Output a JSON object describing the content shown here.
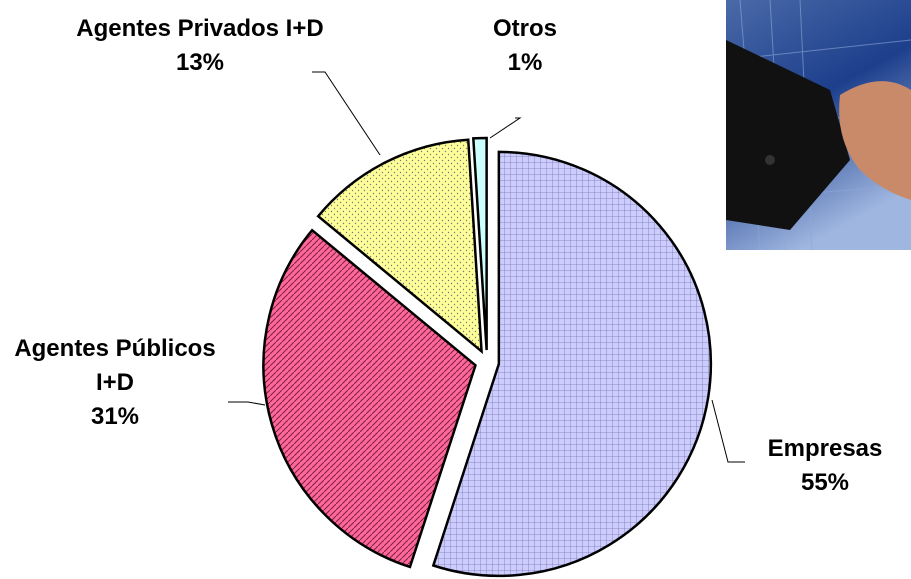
{
  "chart_data": {
    "type": "pie",
    "categories": [
      "Empresas",
      "Agentes Públicos I+D",
      "Agentes Privados I+D",
      "Otros"
    ],
    "values": [
      55,
      31,
      13,
      1
    ],
    "value_labels": [
      "55%",
      "31%",
      "13%",
      "1%"
    ],
    "colors": [
      "#ccccff",
      "#ff6699",
      "#ffff99",
      "#ccffff"
    ]
  }
}
